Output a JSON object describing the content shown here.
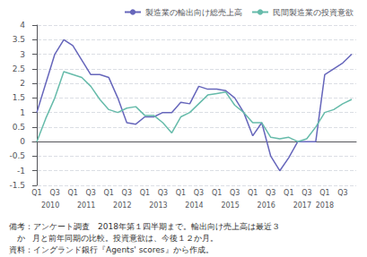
{
  "chart_data": {
    "type": "line",
    "categories": [
      "Q1",
      null,
      "Q3",
      null,
      "Q1",
      null,
      "Q3",
      null,
      "Q1",
      null,
      "Q3",
      null,
      "Q1",
      null,
      "Q3",
      null,
      "Q1",
      null,
      "Q3",
      null,
      "Q1",
      null,
      "Q3",
      null,
      "Q1",
      null,
      "Q3",
      null,
      "Q1",
      null,
      "Q3",
      null,
      "Q1",
      null,
      "Q3",
      null
    ],
    "series": [
      {
        "name": "製造業の輸出向け総売上高",
        "color": "#6666bb",
        "values": [
          1.0,
          2.0,
          3.0,
          3.5,
          3.3,
          2.8,
          2.3,
          2.3,
          2.2,
          1.5,
          0.65,
          0.6,
          0.85,
          0.85,
          1.0,
          1.0,
          1.35,
          1.3,
          1.9,
          1.8,
          1.8,
          1.75,
          1.5,
          1.0,
          0.2,
          0.65,
          -0.5,
          -1.0,
          -0.55,
          0.0,
          0.0,
          0.0,
          2.3,
          2.5,
          2.7,
          3.0
        ]
      },
      {
        "name": "民間製造業の投資意欲",
        "color": "#66bbaa",
        "values": [
          0.0,
          0.8,
          1.5,
          2.4,
          2.3,
          2.2,
          1.9,
          1.45,
          1.1,
          1.0,
          1.15,
          1.2,
          0.9,
          0.9,
          0.65,
          0.3,
          0.85,
          1.0,
          1.3,
          1.6,
          1.65,
          1.7,
          1.25,
          1.0,
          0.65,
          0.65,
          0.15,
          0.1,
          0.15,
          0.0,
          0.1,
          0.5,
          1.0,
          1.1,
          1.3,
          1.45
        ]
      }
    ],
    "ylim": [
      -1.5,
      4.0
    ],
    "yticks": [
      -1.5,
      -1.0,
      -0.5,
      0.0,
      0.5,
      1.0,
      1.5,
      2.0,
      2.5,
      3.0,
      3.5,
      4.0
    ],
    "x2lim": [
      -0.5,
      35.5
    ],
    "x2ticks": [
      {
        "value": 1.5,
        "label": "2010"
      },
      {
        "value": 5.5,
        "label": "2011"
      },
      {
        "value": 9.5,
        "label": "2012"
      },
      {
        "value": 13.5,
        "label": "2013"
      },
      {
        "value": 17.5,
        "label": "2014"
      },
      {
        "value": 21.5,
        "label": "2015"
      },
      {
        "value": 25.5,
        "label": "2016"
      },
      {
        "value": 29.5,
        "label": "2017"
      },
      {
        "value": 32,
        "label": "2018"
      }
    ],
    "annotations": [
      "備考：アンケート調査　2018年第１四半期まで。輸出向け売上高は最近３",
      "　かﾠ月と前年同期の比較。投資意欲は、今後１２か月。",
      "資料：イングランド銀行『Agents' scores』から作成。"
    ],
    "grid": true,
    "legend": "upper right"
  }
}
